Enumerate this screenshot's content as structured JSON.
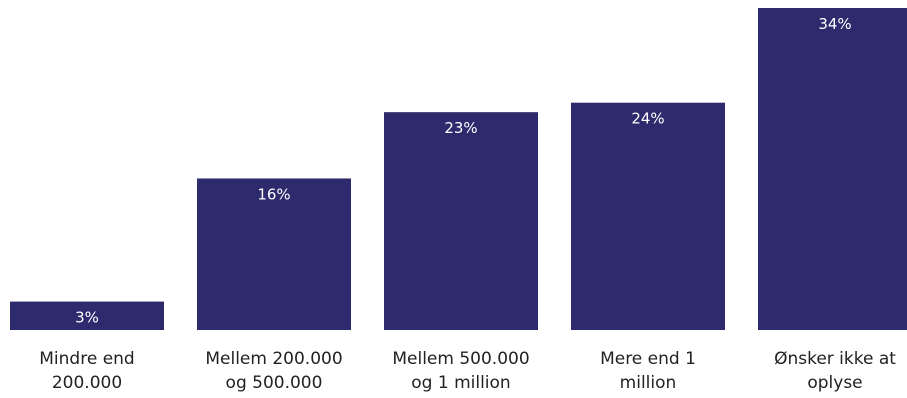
{
  "chart_data": {
    "type": "bar",
    "title": "",
    "xlabel": "",
    "ylabel": "",
    "categories": [
      [
        "Mindre end",
        "200.000"
      ],
      [
        "Mellem 200.000",
        "og 500.000"
      ],
      [
        "Mellem 500.000",
        "og 1 million"
      ],
      [
        "Mere end 1",
        "million"
      ],
      [
        "Ønsker ikke at",
        "oplyse"
      ]
    ],
    "values": [
      3,
      16,
      23,
      24,
      34
    ],
    "value_labels": [
      "3%",
      "16%",
      "23%",
      "24%",
      "34%"
    ],
    "ylim": [
      0,
      34
    ],
    "grid": false,
    "bar_color": "#2e2a6e"
  }
}
